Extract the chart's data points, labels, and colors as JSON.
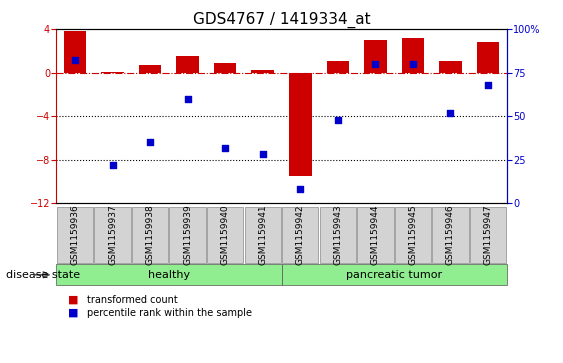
{
  "title": "GDS4767 / 1419334_at",
  "samples": [
    "GSM1159936",
    "GSM1159937",
    "GSM1159938",
    "GSM1159939",
    "GSM1159940",
    "GSM1159941",
    "GSM1159942",
    "GSM1159943",
    "GSM1159944",
    "GSM1159945",
    "GSM1159946",
    "GSM1159947"
  ],
  "transformed_count": [
    3.8,
    0.05,
    0.7,
    1.5,
    0.9,
    0.25,
    -9.5,
    1.1,
    3.0,
    3.2,
    1.1,
    2.8
  ],
  "percentile_rank": [
    82,
    22,
    35,
    60,
    32,
    28,
    8,
    48,
    80,
    80,
    52,
    68
  ],
  "ylim_left": [
    -12,
    4
  ],
  "ylim_right": [
    0,
    100
  ],
  "yticks_left": [
    -12,
    -8,
    -4,
    0,
    4
  ],
  "yticks_right": [
    0,
    25,
    50,
    75,
    100
  ],
  "bar_color": "#cc0000",
  "scatter_color": "#0000cc",
  "hline_color": "#cc0000",
  "dotted_line_color": "#000000",
  "healthy_group_count": 6,
  "tumor_group_count": 6,
  "healthy_label": "healthy",
  "tumor_label": "pancreatic tumor",
  "group_color": "#90ee90",
  "disease_state_label": "disease state",
  "legend_bar_label": "transformed count",
  "legend_scatter_label": "percentile rank within the sample",
  "bar_width": 0.6,
  "title_fontsize": 11,
  "tick_fontsize": 7,
  "label_fontsize": 8,
  "sample_fontsize": 6.5
}
